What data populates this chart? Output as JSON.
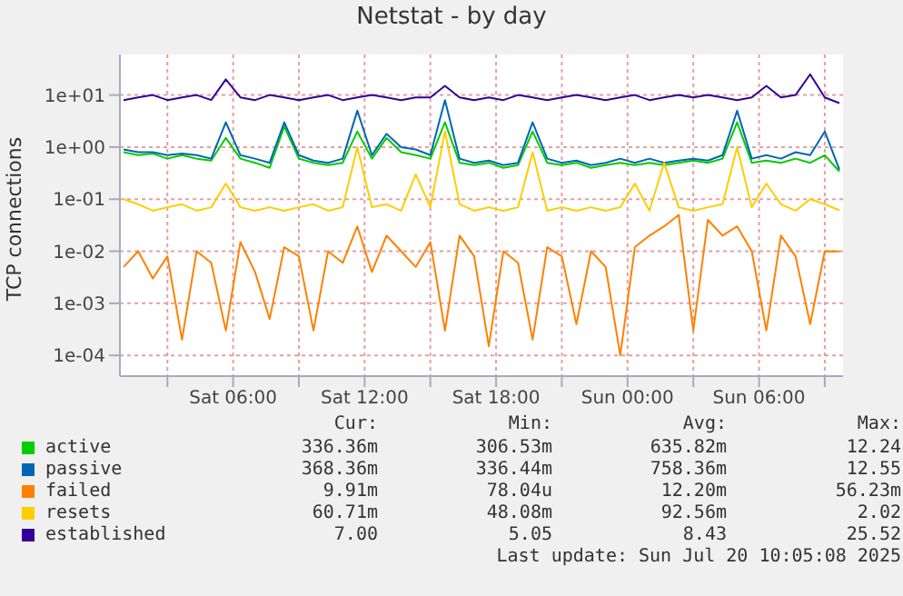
{
  "chart_data": {
    "type": "line",
    "title": "Netstat - by day",
    "ylabel": "TCP connections",
    "x": [
      "2025-07-19T01:00",
      "2025-07-19T01:40",
      "2025-07-19T02:20",
      "2025-07-19T03:00",
      "2025-07-19T03:40",
      "2025-07-19T04:20",
      "2025-07-19T05:00",
      "2025-07-19T05:40",
      "2025-07-19T06:20",
      "2025-07-19T07:00",
      "2025-07-19T07:40",
      "2025-07-19T08:20",
      "2025-07-19T09:00",
      "2025-07-19T09:40",
      "2025-07-19T10:20",
      "2025-07-19T11:00",
      "2025-07-19T11:40",
      "2025-07-19T12:20",
      "2025-07-19T13:00",
      "2025-07-19T13:40",
      "2025-07-19T14:20",
      "2025-07-19T15:00",
      "2025-07-19T15:40",
      "2025-07-19T16:20",
      "2025-07-19T17:00",
      "2025-07-19T17:40",
      "2025-07-19T18:20",
      "2025-07-19T19:00",
      "2025-07-19T19:40",
      "2025-07-19T20:20",
      "2025-07-19T21:00",
      "2025-07-19T21:40",
      "2025-07-19T22:20",
      "2025-07-19T23:00",
      "2025-07-19T23:40",
      "2025-07-20T00:20",
      "2025-07-20T01:00",
      "2025-07-20T01:40",
      "2025-07-20T02:20",
      "2025-07-20T03:00",
      "2025-07-20T03:40",
      "2025-07-20T04:20",
      "2025-07-20T05:00",
      "2025-07-20T05:40",
      "2025-07-20T06:20",
      "2025-07-20T07:00",
      "2025-07-20T07:40",
      "2025-07-20T08:20",
      "2025-07-20T09:00",
      "2025-07-20T09:40"
    ],
    "series": [
      {
        "name": "active",
        "color": "#00cc00",
        "values": [
          0.8,
          0.7,
          0.75,
          0.6,
          0.7,
          0.6,
          0.55,
          1.5,
          0.6,
          0.5,
          0.4,
          2.5,
          0.6,
          0.5,
          0.45,
          0.5,
          2,
          0.6,
          1.5,
          0.8,
          0.7,
          0.6,
          3,
          0.5,
          0.45,
          0.5,
          0.4,
          0.45,
          2,
          0.5,
          0.45,
          0.5,
          0.4,
          0.45,
          0.5,
          0.45,
          0.5,
          0.45,
          0.5,
          0.55,
          0.5,
          0.6,
          3,
          0.5,
          0.55,
          0.5,
          0.6,
          0.5,
          0.7,
          0.34
        ]
      },
      {
        "name": "passive",
        "color": "#0066b3",
        "values": [
          0.9,
          0.8,
          0.8,
          0.7,
          0.75,
          0.7,
          0.6,
          3,
          0.7,
          0.6,
          0.5,
          3,
          0.7,
          0.55,
          0.5,
          0.6,
          5,
          0.7,
          1.8,
          1,
          0.9,
          0.7,
          8,
          0.6,
          0.5,
          0.55,
          0.45,
          0.5,
          3,
          0.6,
          0.5,
          0.55,
          0.45,
          0.5,
          0.6,
          0.5,
          0.6,
          0.5,
          0.55,
          0.6,
          0.55,
          0.7,
          5,
          0.6,
          0.7,
          0.6,
          0.8,
          0.7,
          2,
          0.37
        ]
      },
      {
        "name": "failed",
        "color": "#ff8000",
        "values": [
          0.005,
          0.01,
          0.003,
          0.008,
          0.0002,
          0.01,
          0.006,
          0.0003,
          0.015,
          0.004,
          0.0005,
          0.012,
          0.008,
          0.0003,
          0.01,
          0.006,
          0.03,
          0.004,
          0.02,
          0.01,
          0.005,
          0.015,
          0.0003,
          0.02,
          0.008,
          0.00015,
          0.01,
          0.006,
          0.0002,
          0.012,
          0.008,
          0.0004,
          0.01,
          0.005,
          0.0001,
          0.012,
          0.02,
          0.03,
          0.05,
          0.0003,
          0.04,
          0.02,
          0.03,
          0.01,
          0.0003,
          0.02,
          0.008,
          0.0004,
          0.01,
          0.0099
        ]
      },
      {
        "name": "resets",
        "color": "#ffcc00",
        "values": [
          0.1,
          0.08,
          0.06,
          0.07,
          0.08,
          0.06,
          0.07,
          0.2,
          0.07,
          0.06,
          0.07,
          0.06,
          0.07,
          0.08,
          0.06,
          0.07,
          1,
          0.07,
          0.08,
          0.06,
          0.3,
          0.07,
          2,
          0.08,
          0.06,
          0.07,
          0.06,
          0.07,
          0.8,
          0.06,
          0.07,
          0.06,
          0.07,
          0.06,
          0.07,
          0.2,
          0.06,
          0.5,
          0.07,
          0.06,
          0.07,
          0.08,
          1,
          0.07,
          0.2,
          0.08,
          0.06,
          0.1,
          0.08,
          0.061
        ]
      },
      {
        "name": "established",
        "color": "#330099",
        "values": [
          8,
          9,
          10,
          8,
          9,
          10,
          8,
          20,
          9,
          8,
          10,
          9,
          8,
          9,
          10,
          8,
          9,
          10,
          9,
          8,
          9,
          9,
          15,
          9,
          8,
          9,
          8,
          10,
          9,
          8,
          9,
          10,
          9,
          8,
          9,
          10,
          8,
          9,
          10,
          9,
          10,
          9,
          8,
          9,
          15,
          9,
          10,
          25,
          9,
          7
        ]
      }
    ],
    "xlim": [
      "2025-07-19T00:50",
      "2025-07-20T09:50"
    ],
    "xticks": [
      {
        "value": "2025-07-19T03:00",
        "label": null
      },
      {
        "value": "2025-07-19T06:00",
        "label": "Sat 06:00"
      },
      {
        "value": "2025-07-19T09:00",
        "label": null
      },
      {
        "value": "2025-07-19T12:00",
        "label": "Sat 12:00"
      },
      {
        "value": "2025-07-19T15:00",
        "label": null
      },
      {
        "value": "2025-07-19T18:00",
        "label": "Sat 18:00"
      },
      {
        "value": "2025-07-19T21:00",
        "label": null
      },
      {
        "value": "2025-07-20T00:00",
        "label": "Sun 00:00"
      },
      {
        "value": "2025-07-20T03:00",
        "label": null
      },
      {
        "value": "2025-07-20T06:00",
        "label": "Sun 06:00"
      },
      {
        "value": "2025-07-20T09:00",
        "label": null
      }
    ],
    "ylim": [
      4e-05,
      60
    ],
    "log": true,
    "yticks": [
      {
        "value": 0.0001,
        "label": "1e-04"
      },
      {
        "value": 0.001,
        "label": "1e-03"
      },
      {
        "value": 0.01,
        "label": "1e-02"
      },
      {
        "value": 0.1,
        "label": "1e-01"
      },
      {
        "value": 1,
        "label": "1e+00"
      },
      {
        "value": 10,
        "label": "1e+01"
      }
    ],
    "grid": true,
    "legend": "bottom",
    "marker": "none",
    "line_style": "solid",
    "annotations": [
      "Cur:",
      "Min:",
      "Avg:",
      "Max:",
      "336.36m",
      "306.53m",
      "635.82m",
      "12.24",
      "368.36m",
      "336.44m",
      "758.36m",
      "12.55",
      "9.91m",
      "78.04u",
      "12.20m",
      "56.23m",
      "60.71m",
      "48.08m",
      "92.56m",
      "2.02",
      "7.00",
      "5.05",
      "8.43",
      "25.52",
      "Last update: Sun Jul 20 10:05:08 2025"
    ]
  }
}
